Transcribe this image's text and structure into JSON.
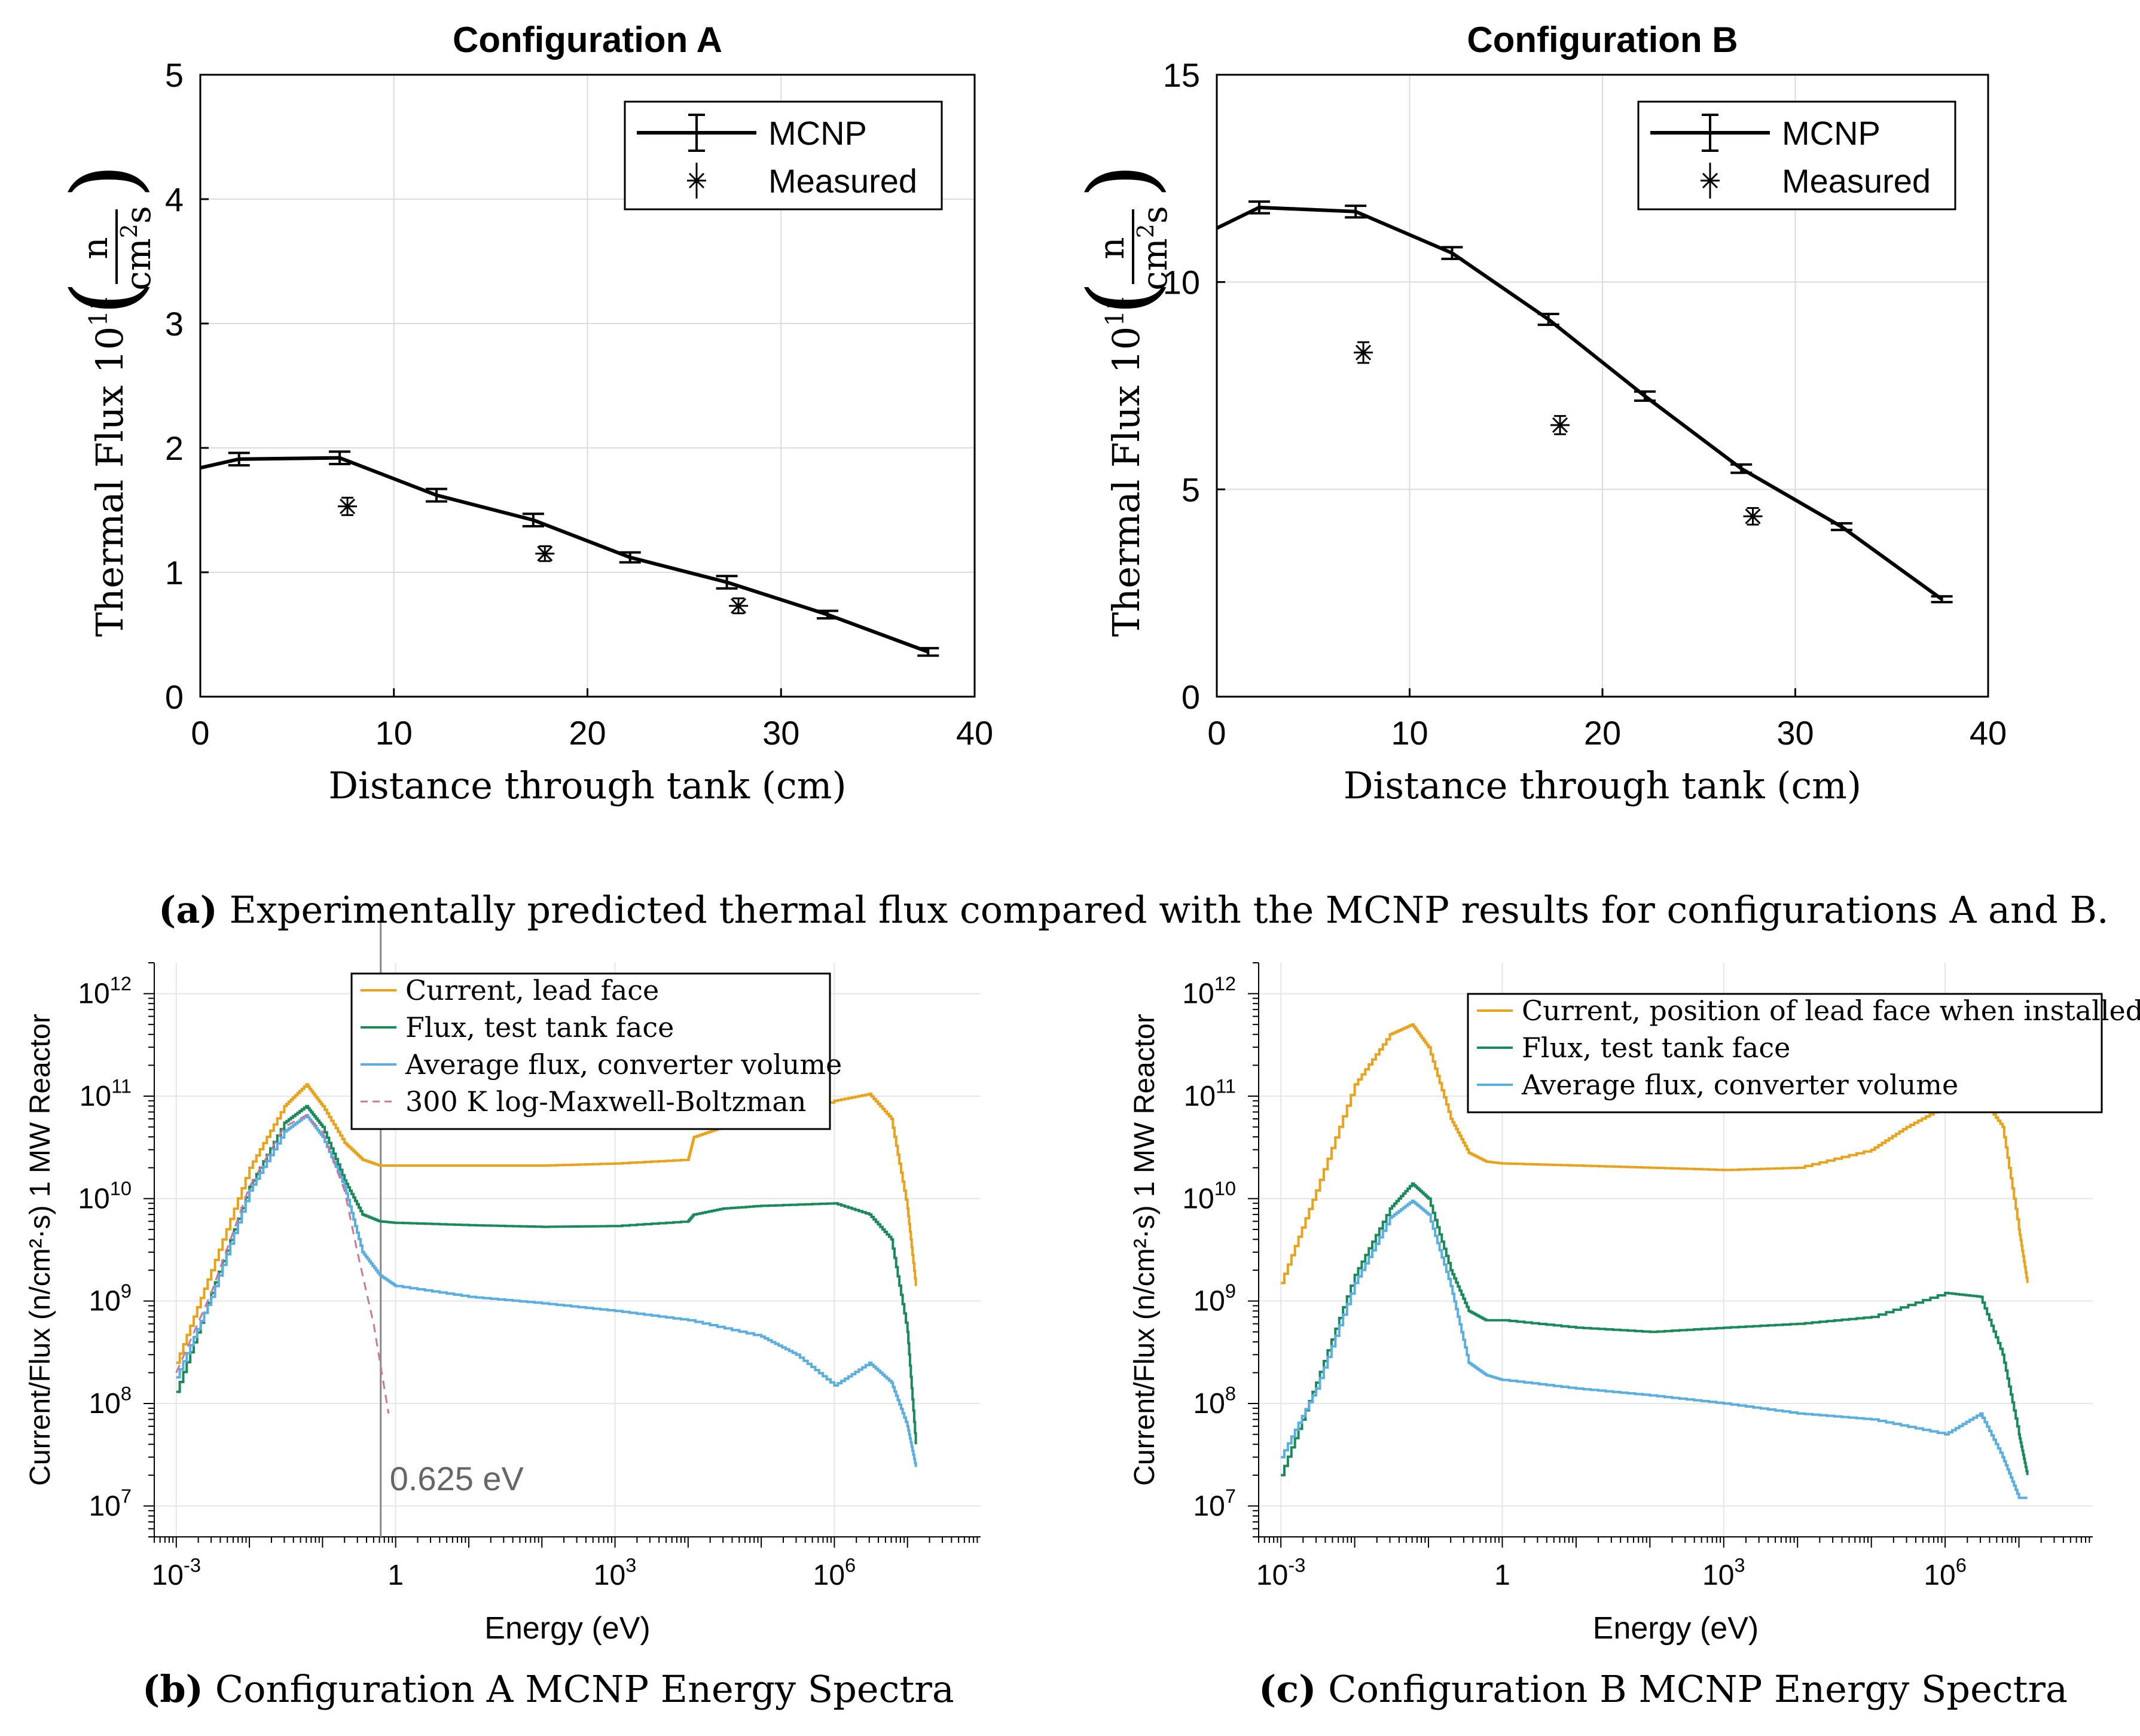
{
  "captions": {
    "a_label": "(a)",
    "a_text": "Experimentally predicted thermal flux compared with the MCNP results for configurations A and B.",
    "b_label": "(b)",
    "b_text": "Configuration A MCNP Energy Spectra",
    "c_label": "(c)",
    "c_text": "Configuration B MCNP Energy Spectra"
  },
  "annotation": "0.625 eV",
  "chart_data": [
    {
      "type": "line",
      "title": "Configuration A",
      "xlabel": "Distance through tank  (cm)",
      "ylabel_prefix": "Thermal Flux 10",
      "ylabel_exp": "11",
      "ylabel_unit_num": "n",
      "ylabel_unit_den_base": "cm",
      "ylabel_unit_den_exp": "2",
      "ylabel_unit_den_tail": "s",
      "xlim": [
        0,
        40
      ],
      "ylim": [
        0,
        5
      ],
      "xticks": [
        "0",
        "10",
        "20",
        "30",
        "40"
      ],
      "yticks": [
        "0",
        "1",
        "2",
        "3",
        "4",
        "5"
      ],
      "grid": true,
      "legend_position": "top-right",
      "legend": [
        "MCNP",
        "Measured"
      ],
      "series": [
        {
          "name": "MCNP",
          "x": [
            0,
            2,
            7.2,
            12.2,
            17.2,
            22.2,
            27.2,
            32.4,
            37.6
          ],
          "y": [
            1.84,
            1.91,
            1.92,
            1.62,
            1.42,
            1.12,
            0.92,
            0.66,
            0.36
          ],
          "err": [
            0,
            0.05,
            0.05,
            0.05,
            0.05,
            0.04,
            0.05,
            0.03,
            0.03
          ]
        },
        {
          "name": "Measured",
          "x": [
            7.6,
            17.8,
            27.8
          ],
          "y": [
            1.53,
            1.15,
            0.73
          ],
          "err": [
            0.07,
            0.06,
            0.06
          ]
        }
      ]
    },
    {
      "type": "line",
      "title": "Configuration B",
      "xlabel": "Distance through tank  (cm)",
      "ylabel_prefix": "Thermal Flux 10",
      "ylabel_exp": "11",
      "ylabel_unit_num": "n",
      "ylabel_unit_den_base": "cm",
      "ylabel_unit_den_exp": "2",
      "ylabel_unit_den_tail": "s",
      "xlim": [
        0,
        40
      ],
      "ylim": [
        0,
        15
      ],
      "xticks": [
        "0",
        "10",
        "20",
        "30",
        "40"
      ],
      "yticks": [
        "0",
        "5",
        "10",
        "15"
      ],
      "grid": true,
      "legend_position": "top-right",
      "legend": [
        "MCNP",
        "Measured"
      ],
      "series": [
        {
          "name": "MCNP",
          "x": [
            0,
            2.2,
            7.2,
            12.2,
            17.2,
            22.2,
            27.2,
            32.4,
            37.6
          ],
          "y": [
            11.3,
            11.8,
            11.7,
            10.7,
            9.1,
            7.25,
            5.5,
            4.1,
            2.35
          ],
          "err": [
            0,
            0.14,
            0.14,
            0.14,
            0.13,
            0.11,
            0.1,
            0.08,
            0.07
          ]
        },
        {
          "name": "Measured",
          "x": [
            7.6,
            17.8,
            27.8
          ],
          "y": [
            8.3,
            6.55,
            4.35
          ],
          "err": [
            0.25,
            0.22,
            0.2
          ]
        }
      ]
    },
    {
      "type": "line",
      "log_x": true,
      "log_y": true,
      "xlabel": "Energy (eV)",
      "ylabel": "Current/Flux (n/cm²·s) 1 MW Reactor",
      "xlim": [
        0.0005,
        100000000
      ],
      "ylim": [
        5000000,
        2000000000000
      ],
      "xticks": [
        {
          "value": 0.001,
          "base": "10",
          "exp": "-3"
        },
        {
          "value": 1,
          "base": "1",
          "exp": ""
        },
        {
          "value": 1000,
          "base": "10",
          "exp": "3"
        },
        {
          "value": 1000000,
          "base": "10",
          "exp": "6"
        }
      ],
      "yticks": [
        {
          "value": 10000000,
          "base": "10",
          "exp": "7"
        },
        {
          "value": 100000000,
          "base": "10",
          "exp": "8"
        },
        {
          "value": 1000000000,
          "base": "10",
          "exp": "9"
        },
        {
          "value": 10000000000,
          "base": "10",
          "exp": "10"
        },
        {
          "value": 100000000000,
          "base": "10",
          "exp": "11"
        },
        {
          "value": 1000000000000,
          "base": "10",
          "exp": "12"
        }
      ],
      "grid": true,
      "legend_position": "top-center",
      "vline": 0.625,
      "series": [
        {
          "name": "Current, lead face",
          "color": "#e8a21c",
          "dashed": false,
          "x": [
            0.001,
            0.003,
            0.01,
            0.03,
            0.06,
            0.1,
            0.2,
            0.35,
            0.6,
            1,
            10,
            100,
            1000,
            10000,
            12000,
            30000,
            100000,
            1000000,
            3000000,
            6000000,
            10000000,
            13000000
          ],
          "y": [
            250000000.0,
            2000000000.0,
            20000000000.0,
            80000000000.0,
            130000000000.0,
            80000000000.0,
            35000000000.0,
            24000000000.0,
            21000000000.0,
            21000000000.0,
            21000000000.0,
            21000000000.0,
            22000000000.0,
            24000000000.0,
            40000000000.0,
            50000000000.0,
            60000000000.0,
            90000000000.0,
            105000000000.0,
            60000000000.0,
            8000000000.0,
            1400000000.0
          ]
        },
        {
          "name": "Flux, test tank face",
          "color": "#1b8a5a",
          "dashed": false,
          "x": [
            0.001,
            0.003,
            0.01,
            0.03,
            0.06,
            0.1,
            0.2,
            0.35,
            0.6,
            1,
            10,
            100,
            1000,
            10000,
            12000,
            30000,
            100000,
            1000000,
            3000000,
            6000000,
            10000000,
            13000000
          ],
          "y": [
            130000000.0,
            1200000000.0,
            13000000000.0,
            55000000000.0,
            80000000000.0,
            50000000000.0,
            15000000000.0,
            7000000000.0,
            6000000000.0,
            5800000000.0,
            5500000000.0,
            5300000000.0,
            5400000000.0,
            6000000000.0,
            7000000000.0,
            8000000000.0,
            8500000000.0,
            9000000000.0,
            7000000000.0,
            4000000000.0,
            500000000.0,
            40000000.0
          ]
        },
        {
          "name": "Average flux, converter volume",
          "color": "#5aaee0",
          "dashed": false,
          "x": [
            0.001,
            0.003,
            0.01,
            0.03,
            0.06,
            0.1,
            0.2,
            0.35,
            0.6,
            1,
            10,
            100,
            1000,
            10000,
            100000,
            300000,
            1000000,
            3000000,
            6000000,
            10000000,
            13000000
          ],
          "y": [
            180000000.0,
            1100000000.0,
            12000000000.0,
            45000000000.0,
            65000000000.0,
            40000000000.0,
            13000000000.0,
            3000000000.0,
            1800000000.0,
            1400000000.0,
            1100000000.0,
            950000000.0,
            800000000.0,
            650000000.0,
            450000000.0,
            300000000.0,
            150000000.0,
            250000000.0,
            160000000.0,
            60000000.0,
            24000000.0
          ]
        },
        {
          "name": "300 K log-Maxwell-Boltzman",
          "color": "#c8789a",
          "dashed": true,
          "x": [
            0.001,
            0.003,
            0.01,
            0.03,
            0.06,
            0.1,
            0.2,
            0.3,
            0.5,
            0.8
          ],
          "y": [
            200000000.0,
            1200000000.0,
            13000000000.0,
            50000000000.0,
            65000000000.0,
            45000000000.0,
            12000000000.0,
            3000000000.0,
            600000000.0,
            80000000.0
          ]
        }
      ]
    },
    {
      "type": "line",
      "log_x": true,
      "log_y": true,
      "xlabel": "Energy (eV)",
      "ylabel": "Current/Flux (n/cm²·s) 1 MW Reactor",
      "xlim": [
        0.0005,
        100000000
      ],
      "ylim": [
        5000000,
        2000000000000
      ],
      "xticks": [
        {
          "value": 0.001,
          "base": "10",
          "exp": "-3"
        },
        {
          "value": 1,
          "base": "1",
          "exp": ""
        },
        {
          "value": 1000,
          "base": "10",
          "exp": "3"
        },
        {
          "value": 1000000,
          "base": "10",
          "exp": "6"
        }
      ],
      "yticks": [
        {
          "value": 10000000,
          "base": "10",
          "exp": "7"
        },
        {
          "value": 100000000,
          "base": "10",
          "exp": "8"
        },
        {
          "value": 1000000000,
          "base": "10",
          "exp": "9"
        },
        {
          "value": 10000000000,
          "base": "10",
          "exp": "10"
        },
        {
          "value": 100000000000,
          "base": "10",
          "exp": "11"
        },
        {
          "value": 1000000000000,
          "base": "10",
          "exp": "12"
        }
      ],
      "grid": true,
      "legend_position": "top-right",
      "series": [
        {
          "name": "Current, position of lead face when installed",
          "color": "#e8a21c",
          "dashed": false,
          "x": [
            0.001,
            0.003,
            0.01,
            0.03,
            0.06,
            0.1,
            0.2,
            0.35,
            0.6,
            1,
            10,
            100,
            1000,
            10000,
            100000,
            300000,
            1000000,
            3000000,
            6000000,
            10000000,
            13000000
          ],
          "y": [
            1500000000.0,
            12000000000.0,
            130000000000.0,
            400000000000.0,
            500000000000.0,
            300000000000.0,
            60000000000.0,
            28000000000.0,
            23000000000.0,
            22000000000.0,
            21000000000.0,
            20000000000.0,
            19000000000.0,
            20000000000.0,
            30000000000.0,
            50000000000.0,
            80000000000.0,
            100000000000.0,
            50000000000.0,
            5000000000.0,
            1500000000.0
          ]
        },
        {
          "name": "Flux, test tank face",
          "color": "#1b8a5a",
          "dashed": false,
          "x": [
            0.001,
            0.003,
            0.01,
            0.03,
            0.06,
            0.1,
            0.2,
            0.35,
            0.6,
            1,
            10,
            100,
            1000,
            10000,
            100000,
            1000000,
            3000000,
            6000000,
            10000000,
            13000000
          ],
          "y": [
            20000000.0,
            160000000.0,
            1800000000.0,
            8000000000.0,
            14000000000.0,
            10000000000.0,
            2000000000.0,
            800000000.0,
            650000000.0,
            650000000.0,
            550000000.0,
            500000000.0,
            550000000.0,
            600000000.0,
            700000000.0,
            1200000000.0,
            1100000000.0,
            300000000.0,
            50000000.0,
            20000000.0
          ]
        },
        {
          "name": "Average flux, converter volume",
          "color": "#5aaee0",
          "dashed": false,
          "x": [
            0.001,
            0.003,
            0.01,
            0.03,
            0.06,
            0.1,
            0.2,
            0.35,
            0.6,
            1,
            10,
            100,
            1000,
            10000,
            100000,
            1000000,
            3000000,
            6000000,
            10000000,
            13000000
          ],
          "y": [
            30000000.0,
            140000000.0,
            1500000000.0,
            6500000000.0,
            9500000000.0,
            7000000000.0,
            1400000000.0,
            250000000.0,
            190000000.0,
            170000000.0,
            140000000.0,
            120000000.0,
            100000000.0,
            80000000.0,
            70000000.0,
            50000000.0,
            80000000.0,
            30000000.0,
            12000000.0,
            12000000.0
          ]
        }
      ]
    }
  ]
}
